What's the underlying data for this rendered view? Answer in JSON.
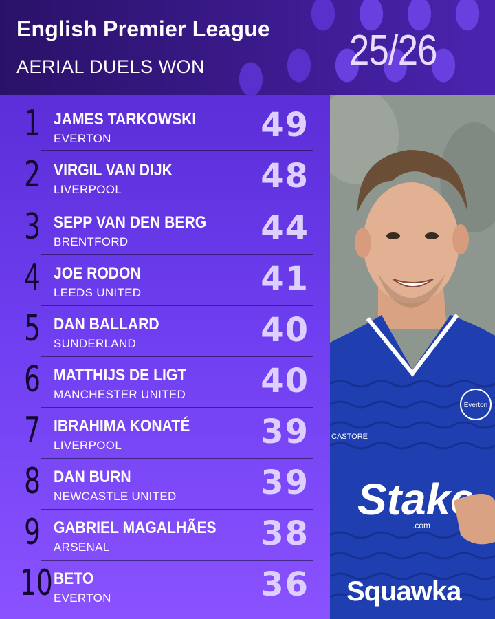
{
  "header": {
    "title": "English Premier League",
    "subtitle": "AERIAL DUELS WON",
    "season": "25/26"
  },
  "players": [
    {
      "rank": "1",
      "name": "JAMES TARKOWSKI",
      "club": "EVERTON",
      "value": "49"
    },
    {
      "rank": "2",
      "name": "VIRGIL VAN DIJK",
      "club": "LIVERPOOL",
      "value": "48"
    },
    {
      "rank": "3",
      "name": "SEPP VAN DEN BERG",
      "club": "BRENTFORD",
      "value": "44"
    },
    {
      "rank": "4",
      "name": "JOE RODON",
      "club": "LEEDS UNITED",
      "value": "41"
    },
    {
      "rank": "5",
      "name": "DAN BALLARD",
      "club": "SUNDERLAND",
      "value": "40"
    },
    {
      "rank": "6",
      "name": "MATTHIJS DE LIGT",
      "club": "MANCHESTER UNITED",
      "value": "40"
    },
    {
      "rank": "7",
      "name": "IBRAHIMA KONATÉ",
      "club": "LIVERPOOL",
      "value": "39"
    },
    {
      "rank": "8",
      "name": "DAN BURN",
      "club": "NEWCASTLE UNITED",
      "value": "39"
    },
    {
      "rank": "9",
      "name": "GABRIEL MAGALHÃES",
      "club": "ARSENAL",
      "value": "38"
    },
    {
      "rank": "10",
      "name": "BETO",
      "club": "EVERTON",
      "value": "36"
    }
  ],
  "photo": {
    "shirt_sponsor": "Stake",
    "shirt_sponsor_suffix": ".com",
    "badge_text": "Everton",
    "kit_brand": "CASTORE"
  },
  "brand": "Squawka",
  "colors": {
    "panel_top": "#5b2ed8",
    "panel_bottom": "#8a52ff",
    "value_text": "#ddd0ff",
    "rank_text": "#14082e",
    "shirt_blue": "#1f3fb0"
  }
}
